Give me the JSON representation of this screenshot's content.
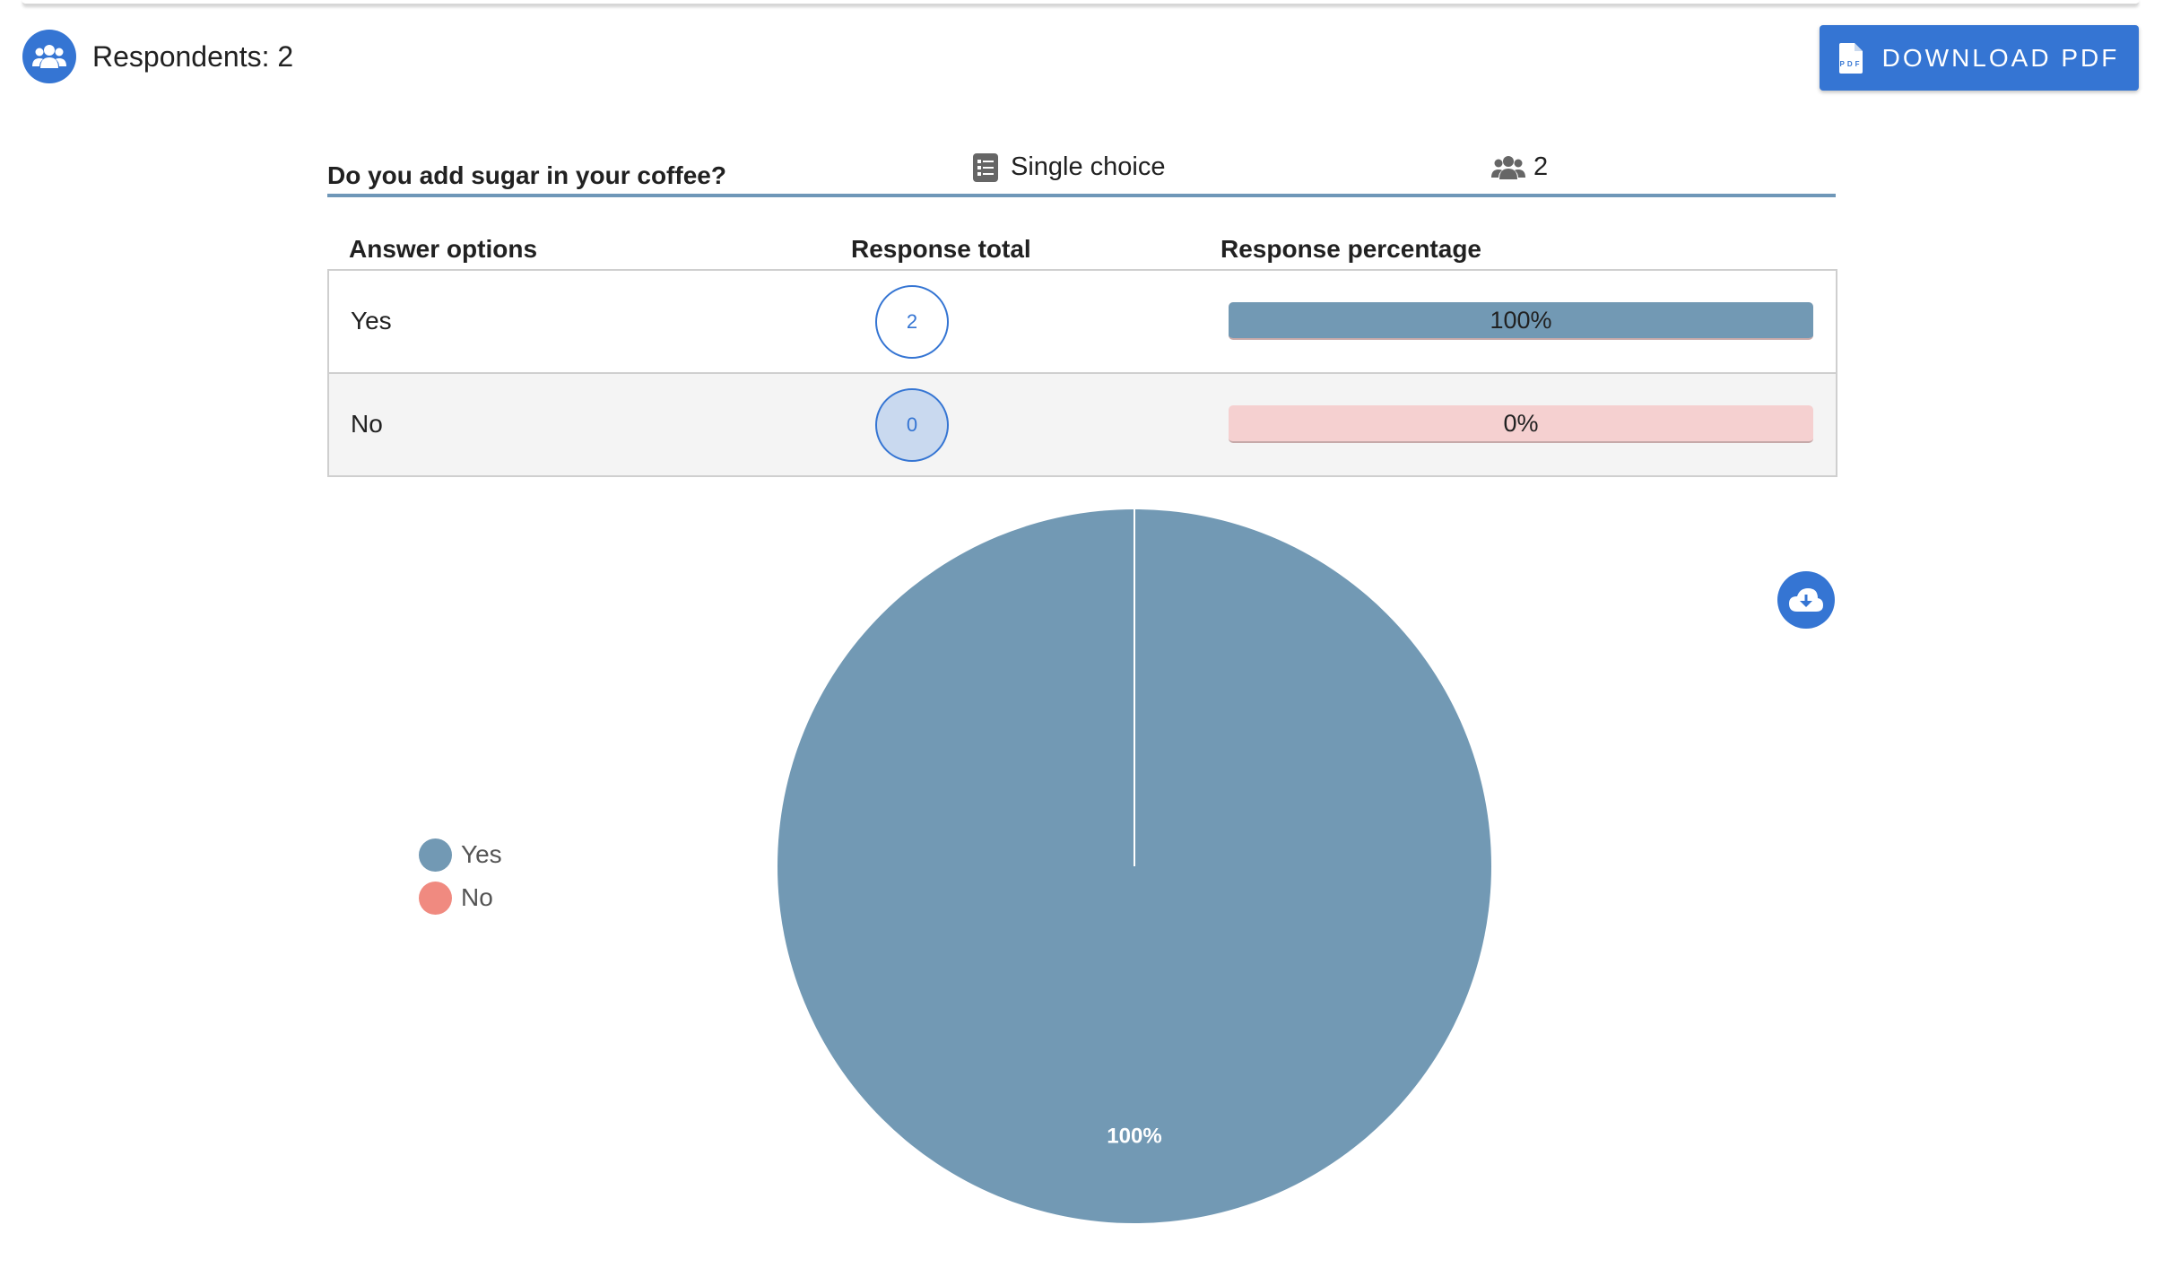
{
  "header": {
    "respondents_label": "Respondents: 2",
    "download_pdf_label": "DOWNLOAD PDF"
  },
  "question": {
    "text": "Do you add sugar in your coffee?",
    "type": "Single choice",
    "respondent_count": "2"
  },
  "table": {
    "columns": [
      "Answer options",
      "Response total",
      "Response percentage"
    ],
    "rows": [
      {
        "option": "Yes",
        "total": "2",
        "percentage_label": "100%",
        "percentage": 100
      },
      {
        "option": "No",
        "total": "0",
        "percentage_label": "0%",
        "percentage": 0
      }
    ]
  },
  "colors": {
    "accent": "#3575d3",
    "yes": "#7299b4",
    "no": "#f08a80",
    "no_bar": "#f5d0d0"
  },
  "icons": {
    "respondents": "people-group-icon",
    "pdf": "pdf-file-icon",
    "question_type": "list-icon",
    "question_count": "people-group-icon",
    "chart_download": "cloud-download-icon"
  },
  "chart_data": {
    "type": "pie",
    "categories": [
      "Yes",
      "No"
    ],
    "values": [
      2,
      0
    ],
    "slice_labels": [
      "100%",
      ""
    ],
    "colors": [
      "#7299b4",
      "#f08a80"
    ],
    "legend": [
      "Yes",
      "No"
    ],
    "legend_position": "left"
  }
}
